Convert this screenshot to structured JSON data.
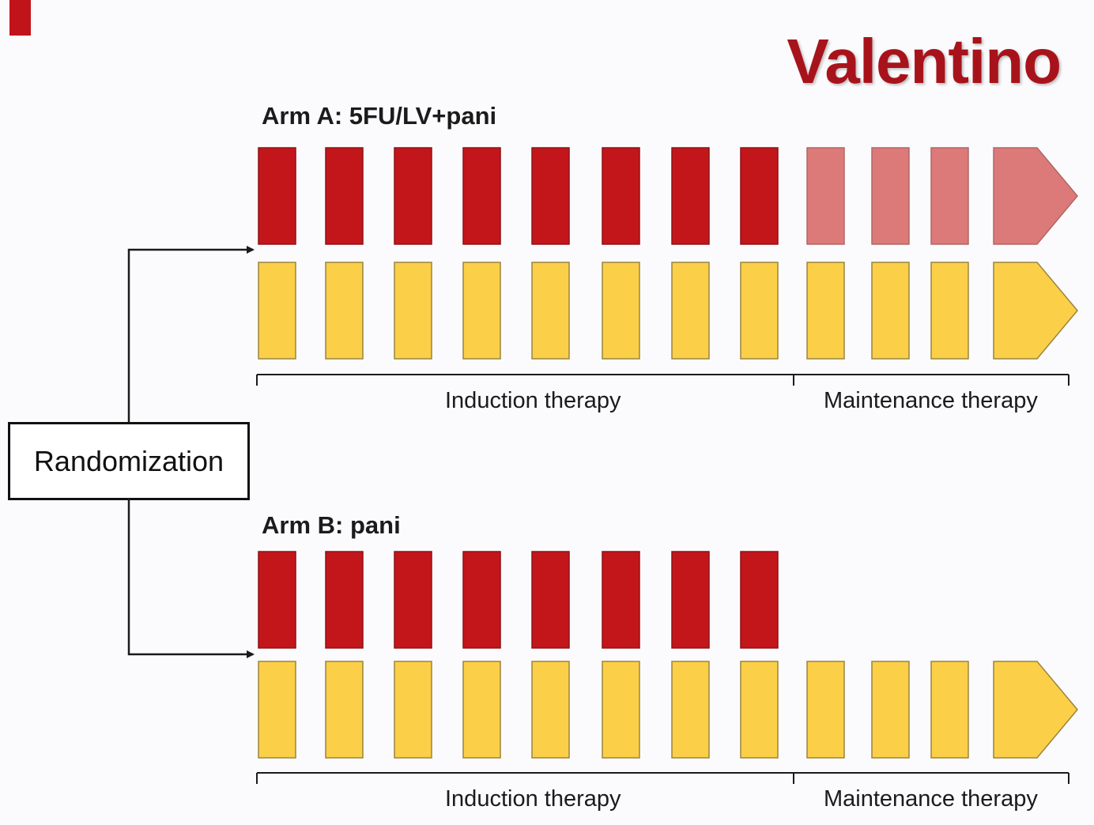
{
  "title": "Valentino",
  "randomization": "Randomization",
  "colors": {
    "accent": "#c0141a",
    "red": "#c3161b",
    "pink": "#db7a78",
    "yellow": "#fccf48",
    "line": "#1b1b1b"
  },
  "arms": [
    {
      "label": "Arm A: 5FU/LV+pani",
      "induction_label": "Induction therapy",
      "maintenance_label": "Maintenance therapy",
      "top_row": [
        "red",
        "red",
        "red",
        "red",
        "red",
        "red",
        "red",
        "red",
        "pink",
        "pink",
        "pink",
        "pink-arrow"
      ],
      "bottom_row": [
        "yellow",
        "yellow",
        "yellow",
        "yellow",
        "yellow",
        "yellow",
        "yellow",
        "yellow",
        "yellow",
        "yellow",
        "yellow",
        "yellow-arrow"
      ]
    },
    {
      "label": "Arm B: pani",
      "induction_label": "Induction therapy",
      "maintenance_label": "Maintenance therapy",
      "top_row": [
        "red",
        "red",
        "red",
        "red",
        "red",
        "red",
        "red",
        "red"
      ],
      "bottom_row": [
        "yellow",
        "yellow",
        "yellow",
        "yellow",
        "yellow",
        "yellow",
        "yellow",
        "yellow",
        "yellow",
        "yellow",
        "yellow",
        "yellow-arrow"
      ]
    }
  ]
}
